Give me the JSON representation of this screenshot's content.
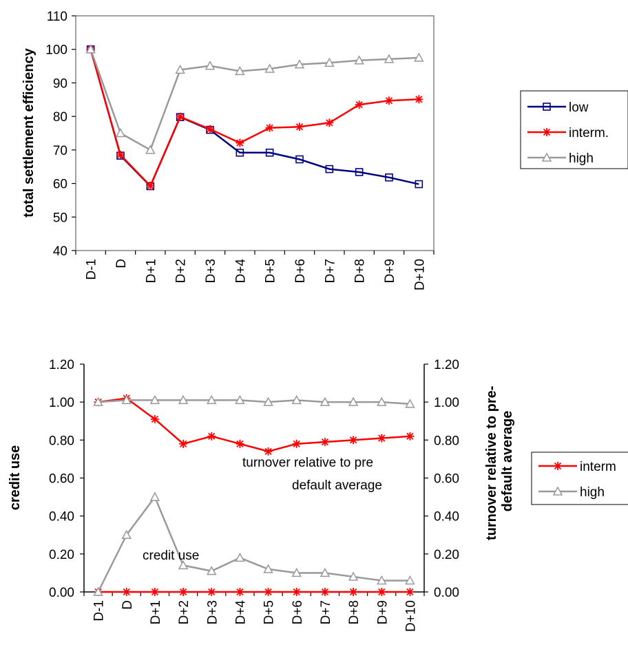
{
  "chart_data": [
    {
      "type": "line",
      "categories": [
        "D-1",
        "D",
        "D+1",
        "D+2",
        "D+3",
        "D+4",
        "D+5",
        "D+6",
        "D+7",
        "D+8",
        "D+9",
        "D+10"
      ],
      "ylabel": "total settlement efficiency",
      "ylim": [
        40,
        110
      ],
      "yticks": [
        "40",
        "50",
        "60",
        "70",
        "80",
        "90",
        "100",
        "110"
      ],
      "legend_position": "right",
      "series": [
        {
          "name": "low",
          "color": "#000080",
          "marker": "square",
          "values": [
            100,
            68.3,
            59.2,
            79.8,
            76.0,
            69.2,
            69.2,
            67.2,
            64.3,
            63.4,
            61.8,
            59.8
          ]
        },
        {
          "name": "interm.",
          "color": "#ff0000",
          "marker": "star",
          "values": [
            100,
            68.5,
            59.3,
            79.9,
            76.2,
            72.1,
            76.6,
            76.9,
            78.1,
            83.5,
            84.7,
            85.1
          ]
        },
        {
          "name": "high",
          "color": "#999999",
          "marker": "triangle",
          "values": [
            100,
            75.0,
            70.0,
            93.9,
            95.1,
            93.5,
            94.2,
            95.5,
            96.0,
            96.7,
            97.1,
            97.5
          ]
        }
      ]
    },
    {
      "type": "line",
      "categories": [
        "D-1",
        "D",
        "D+1",
        "D+2",
        "D+3",
        "D+4",
        "D+5",
        "D+6",
        "D+7",
        "D+8",
        "D+9",
        "D+10"
      ],
      "ylabel": "credit use",
      "y2label": "turnover relative to pre-default average",
      "ylim": [
        0,
        1.2
      ],
      "y2lim": [
        0,
        1.2
      ],
      "yticks": [
        "0.00",
        "0.20",
        "0.40",
        "0.60",
        "0.80",
        "1.00",
        "1.20"
      ],
      "legend_position": "right",
      "annotations": [
        {
          "text": "turnover relative to pre"
        },
        {
          "text": "default average"
        },
        {
          "text": "credit use"
        }
      ],
      "series": [
        {
          "name": "interm",
          "color": "#ff0000",
          "marker": "star",
          "group": "turnover",
          "values": [
            1.0,
            1.02,
            0.91,
            0.78,
            0.82,
            0.78,
            0.74,
            0.78,
            0.79,
            0.8,
            0.81,
            0.82
          ]
        },
        {
          "name": "high",
          "color": "#999999",
          "marker": "triangle",
          "group": "turnover",
          "values": [
            1.0,
            1.01,
            1.01,
            1.01,
            1.01,
            1.01,
            1.0,
            1.01,
            1.0,
            1.0,
            1.0,
            0.99
          ]
        },
        {
          "color": "#ff0000",
          "marker": "star",
          "group": "credit use",
          "values": [
            0,
            0,
            0,
            0,
            0,
            0,
            0,
            0,
            0,
            0,
            0,
            0
          ]
        },
        {
          "color": "#999999",
          "marker": "triangle",
          "group": "credit use",
          "values": [
            0,
            0.3,
            0.5,
            0.14,
            0.11,
            0.18,
            0.12,
            0.1,
            0.1,
            0.08,
            0.06,
            0.06
          ]
        }
      ]
    }
  ]
}
